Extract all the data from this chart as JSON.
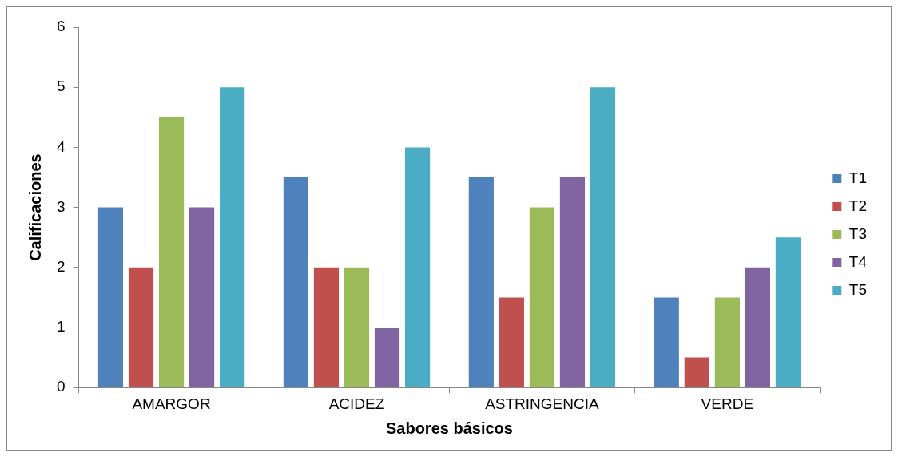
{
  "chart_data": {
    "type": "bar",
    "xlabel": "Sabores básicos",
    "ylabel": "Calificaciones",
    "categories": [
      "AMARGOR",
      "ACIDEZ",
      "ASTRINGENCIA",
      "VERDE"
    ],
    "series": [
      {
        "name": "T1",
        "color": "#4f81bd",
        "values": [
          3,
          3.5,
          3.5,
          1.5
        ]
      },
      {
        "name": "T2",
        "color": "#c0504d",
        "values": [
          2,
          2,
          1.5,
          0.5
        ]
      },
      {
        "name": "T3",
        "color": "#9bbb59",
        "values": [
          4.5,
          2,
          3,
          1.5
        ]
      },
      {
        "name": "T4",
        "color": "#8064a2",
        "values": [
          3,
          1,
          3.5,
          2
        ]
      },
      {
        "name": "T5",
        "color": "#4bacc6",
        "values": [
          5,
          4,
          5,
          2.5
        ]
      }
    ],
    "ylim": [
      0,
      6
    ],
    "yticks": [
      0,
      1,
      2,
      3,
      4,
      5,
      6
    ],
    "grid": false,
    "legend": "right"
  }
}
